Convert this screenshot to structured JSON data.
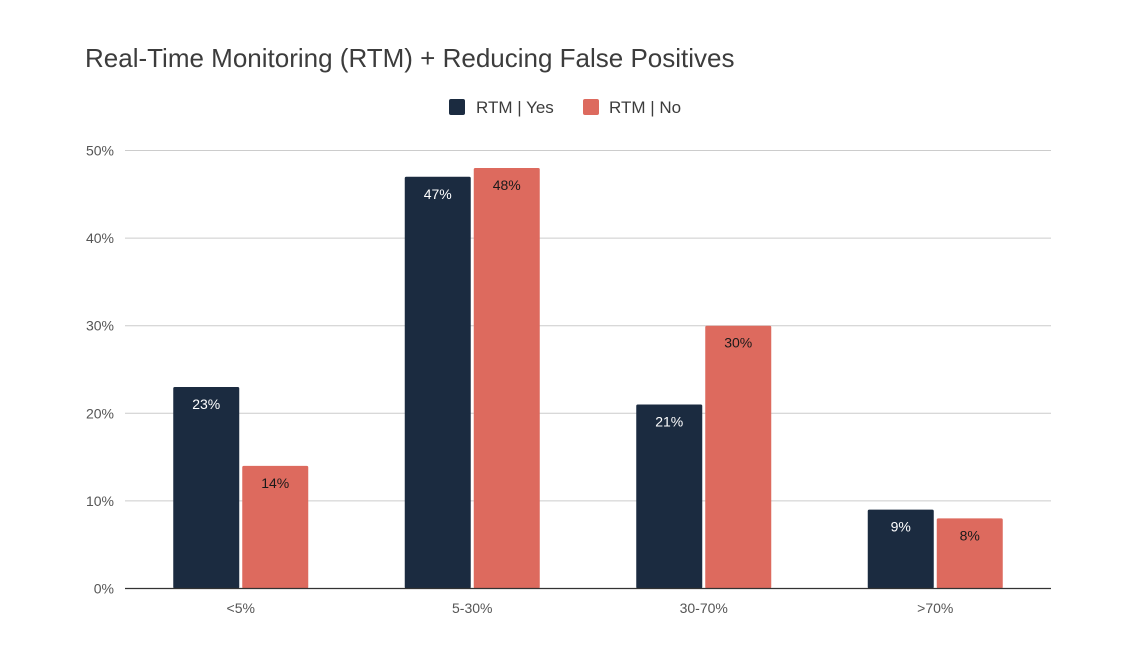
{
  "chart_data": {
    "type": "bar",
    "title": "Real-Time Monitoring (RTM) + Reducing False Positives",
    "xlabel": "",
    "ylabel": "",
    "categories": [
      "<5%",
      "5-30%",
      "30-70%",
      ">70%"
    ],
    "series": [
      {
        "name": "RTM | Yes",
        "color": "#1b2b40",
        "label_color": "#ffffff",
        "values": [
          23,
          47,
          21,
          9
        ],
        "labels": [
          "23%",
          "47%",
          "21%",
          "9%"
        ]
      },
      {
        "name": "RTM | No",
        "color": "#dd6a5e",
        "label_color": "#1a1a1a",
        "values": [
          14,
          48,
          30,
          8
        ],
        "labels": [
          "14%",
          "48%",
          "30%",
          "8%"
        ]
      }
    ],
    "ylim": [
      0,
      50
    ],
    "yticks": [
      0,
      10,
      20,
      30,
      40,
      50
    ],
    "ytick_labels": [
      "0%",
      "10%",
      "20%",
      "30%",
      "40%",
      "50%"
    ],
    "grid": true,
    "legend_position": "top-center"
  }
}
